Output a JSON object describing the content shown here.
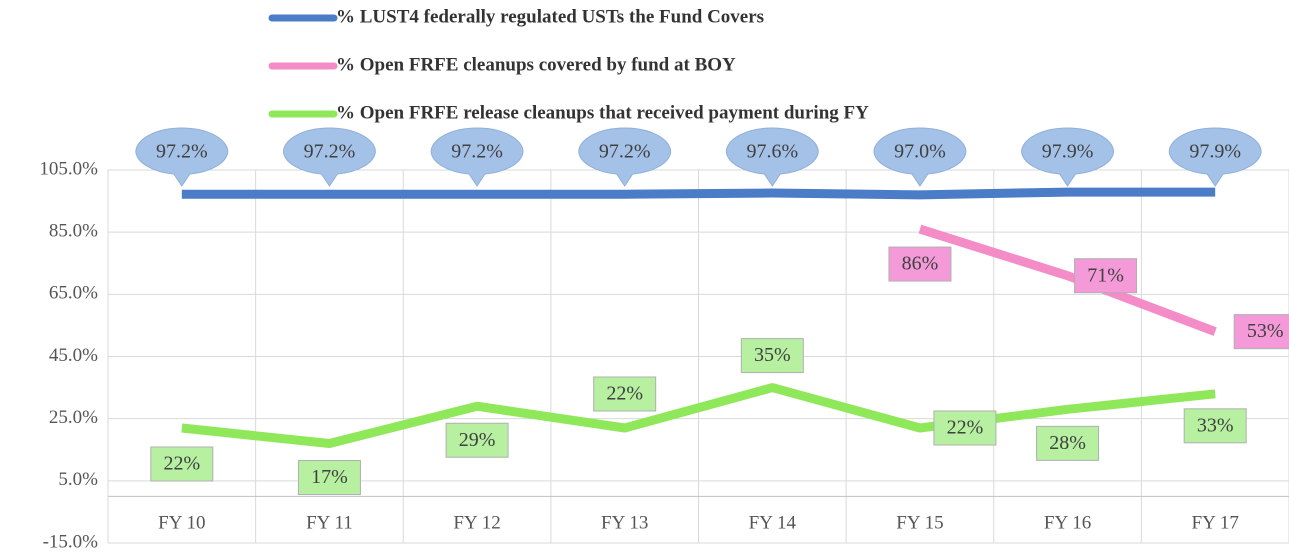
{
  "chart_data": {
    "type": "line",
    "categories": [
      "FY 10",
      "FY 11",
      "FY 12",
      "FY 13",
      "FY 14",
      "FY 15",
      "FY 16",
      "FY 17"
    ],
    "series": [
      {
        "name": "% LUST4  federally regulated USTs the Fund Covers",
        "color": "#4a7cc7",
        "values": [
          97.2,
          97.2,
          97.2,
          97.2,
          97.6,
          97.0,
          97.9,
          97.9
        ],
        "value_labels": [
          "97.2%",
          "97.2%",
          "97.2%",
          "97.2%",
          "97.6%",
          "97.0%",
          "97.9%",
          "97.9%"
        ]
      },
      {
        "name": "% Open FRFE cleanups covered by fund at BOY",
        "color": "#f48cc8",
        "values": [
          null,
          null,
          null,
          null,
          null,
          86,
          71,
          53
        ],
        "value_labels": [
          null,
          null,
          null,
          null,
          null,
          "86%",
          "71%",
          "53%"
        ]
      },
      {
        "name": "% Open FRFE release cleanups that received payment during FY",
        "color": "#8ee85a",
        "values": [
          22,
          17,
          29,
          22,
          35,
          22,
          28,
          33
        ],
        "value_labels": [
          "22%",
          "17%",
          "29%",
          "22%",
          "35%",
          "22%",
          "28%",
          "33%"
        ]
      }
    ],
    "ylim": [
      -15,
      105
    ],
    "yticks": [
      {
        "value": -15,
        "label": "-15.0%"
      },
      {
        "value": 5,
        "label": "5.0%"
      },
      {
        "value": 25,
        "label": "25.0%"
      },
      {
        "value": 45,
        "label": "45.0%"
      },
      {
        "value": 65,
        "label": "65.0%"
      },
      {
        "value": 85,
        "label": "85.0%"
      },
      {
        "value": 105,
        "label": "105.0%"
      }
    ],
    "grid": true,
    "legend": "top"
  }
}
